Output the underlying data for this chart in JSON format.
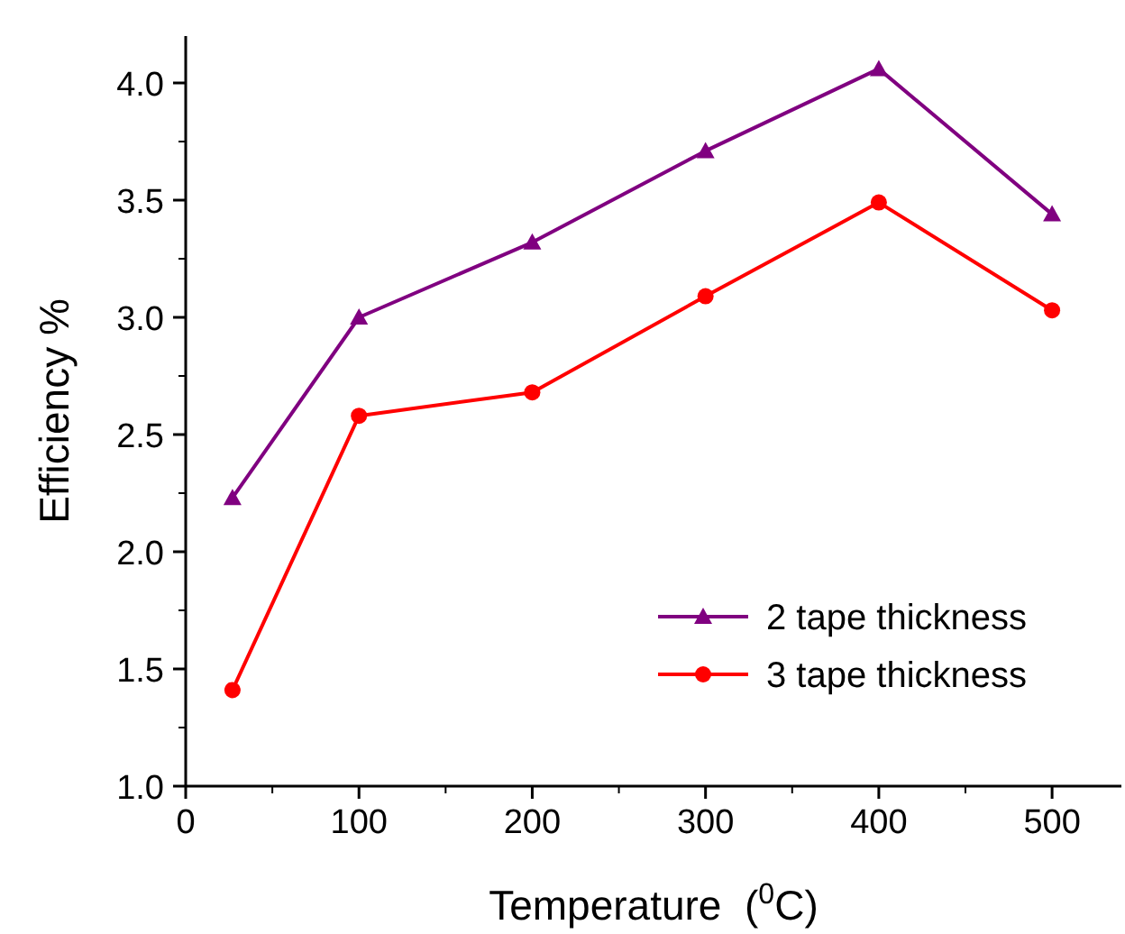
{
  "chart_data": {
    "type": "line",
    "xlabel": "Temperature  ($^{0}$C)",
    "ylabel": "Efficiency %",
    "x": [
      27,
      100,
      200,
      300,
      400,
      500
    ],
    "xlim": [
      0,
      540
    ],
    "xticks": [
      0,
      100,
      200,
      300,
      400,
      500
    ],
    "ylim": [
      1.0,
      4.2
    ],
    "yticks": [
      {
        "value": 1,
        "label": "1.0"
      },
      {
        "value": 1.5,
        "label": "1.5"
      },
      {
        "value": 2,
        "label": "2.0"
      },
      {
        "value": 2.5,
        "label": "2.5"
      },
      {
        "value": 3,
        "label": "3.0"
      },
      {
        "value": 3.5,
        "label": "3.5"
      },
      {
        "value": 4,
        "label": "4.0"
      }
    ],
    "legend": "bottom right",
    "grid": false,
    "series": [
      {
        "name": "2 tape thickness",
        "color": "#800080",
        "marker": "triangle",
        "values": [
          2.23,
          3.0,
          3.32,
          3.71,
          4.06,
          3.44
        ]
      },
      {
        "name": "3 tape thickness",
        "color": "#ff0000",
        "marker": "circle",
        "values": [
          1.41,
          2.58,
          2.68,
          3.09,
          3.49,
          3.03
        ]
      }
    ]
  }
}
